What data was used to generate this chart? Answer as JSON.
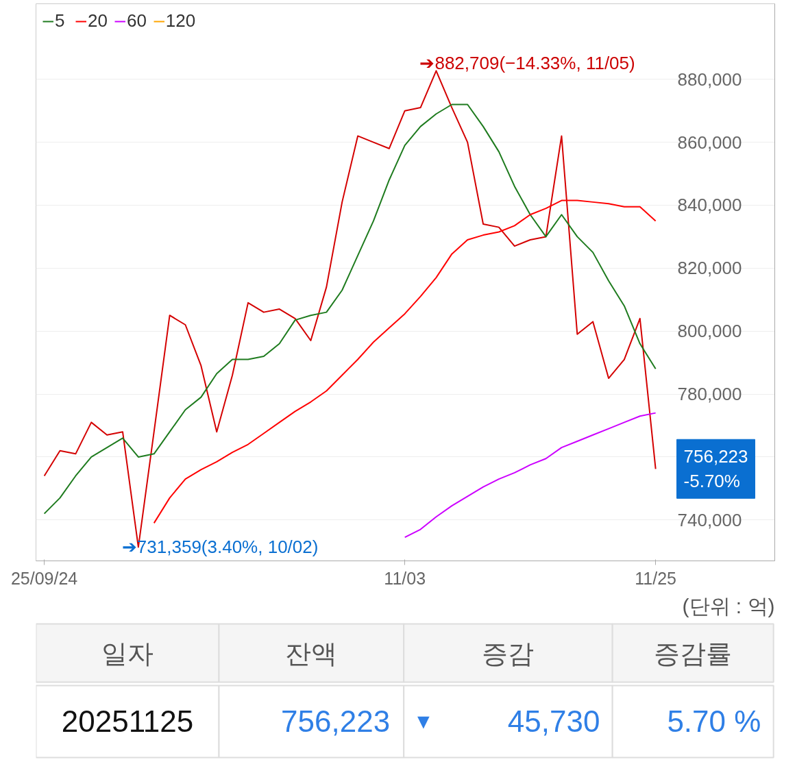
{
  "chart_data": [
    {
      "type": "line",
      "categories": [
        "25/09/24",
        null,
        null,
        null,
        null,
        null,
        null,
        null,
        null,
        null,
        null,
        null,
        null,
        null,
        null,
        null,
        null,
        null,
        null,
        null,
        null,
        null,
        null,
        "11/03",
        null,
        null,
        null,
        null,
        null,
        null,
        null,
        null,
        null,
        null,
        null,
        null,
        null,
        null,
        null,
        "11/25"
      ],
      "series": [
        {
          "color": "#d40000",
          "values": [
            754000,
            762000,
            761000,
            771000,
            767000,
            768000,
            731359,
            768000,
            805000,
            802000,
            789000,
            768000,
            786000,
            809000,
            806000,
            807000,
            804000,
            797000,
            814000,
            841000,
            862000,
            860000,
            858000,
            870000,
            871000,
            882709,
            871000,
            860000,
            834000,
            833000,
            827000,
            829000,
            830000,
            862000,
            799000,
            803000,
            785000,
            791000,
            804000,
            756223
          ]
        },
        {
          "name": "5",
          "color": "#1e7b1e",
          "values": [
            742000,
            747000,
            754000,
            760000,
            763000,
            766000,
            760000,
            761000,
            768000,
            775000,
            779000,
            786500,
            791000,
            791000,
            792000,
            796000,
            803500,
            805000,
            806000,
            813000,
            824000,
            835000,
            848000,
            859000,
            865000,
            869000,
            872000,
            872000,
            865000,
            857000,
            846000,
            837000,
            830000,
            837000,
            830000,
            825000,
            816000,
            808000,
            796000,
            788000
          ]
        },
        {
          "name": "20",
          "color": "#ff0000",
          "values": [
            null,
            null,
            null,
            null,
            null,
            null,
            null,
            739000,
            747000,
            753000,
            756000,
            758500,
            761500,
            764000,
            767500,
            771000,
            774500,
            777500,
            781000,
            786000,
            791000,
            796500,
            801000,
            805500,
            811000,
            817000,
            824500,
            829000,
            830500,
            831500,
            833500,
            837000,
            839000,
            841500,
            841500,
            841000,
            840500,
            839500,
            839500,
            835000
          ]
        },
        {
          "name": "60",
          "color": "#cc00ff",
          "values": [
            null,
            null,
            null,
            null,
            null,
            null,
            null,
            null,
            null,
            null,
            null,
            null,
            null,
            null,
            null,
            null,
            null,
            null,
            null,
            null,
            null,
            null,
            null,
            734500,
            737000,
            741000,
            744500,
            747500,
            750500,
            753000,
            755000,
            757500,
            759500,
            763000,
            765000,
            767000,
            769000,
            771000,
            773000,
            774000
          ]
        },
        {
          "name": "120",
          "color": "#ffa500",
          "values": [
            null,
            null,
            null,
            null,
            null,
            null,
            null,
            null,
            null,
            null,
            null,
            null,
            null,
            null,
            null,
            null,
            null,
            null,
            null,
            null,
            null,
            null,
            null,
            null,
            null,
            null,
            null,
            null,
            null,
            null,
            null,
            null,
            null,
            null,
            null,
            null,
            null,
            null,
            null,
            null
          ]
        }
      ],
      "ylim": [
        727000,
        904000
      ],
      "yticks": [
        {
          "value": 740000,
          "label": "740,000"
        },
        {
          "value": 760000,
          "label": null
        },
        {
          "value": 780000,
          "label": "780,000"
        },
        {
          "value": 800000,
          "label": "800,000"
        },
        {
          "value": 820000,
          "label": "820,000"
        },
        {
          "value": 840000,
          "label": "840,000"
        },
        {
          "value": 860000,
          "label": "860,000"
        },
        {
          "value": 880000,
          "label": "880,000"
        }
      ],
      "grid": "y",
      "legend": "top left",
      "marker": "none",
      "line_style": "solid",
      "annotations": [
        "➔882,709(−14.33%, 11/05)",
        "➔731,359(3.40%, 10/02)",
        "756,223\n-5.70%",
        "(단위 : 억)"
      ]
    },
    {
      "type": "other",
      "annotations": [
        "일자",
        "잔액",
        "증감",
        "증감률",
        "20251125",
        "756,223",
        "▼",
        "45,730",
        "5.70 %"
      ]
    }
  ]
}
